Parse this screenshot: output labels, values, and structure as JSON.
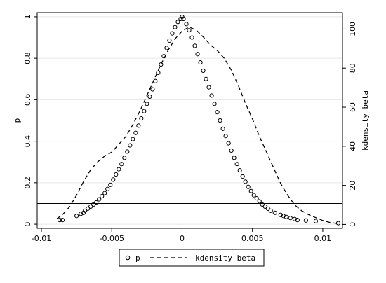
{
  "chart_data": {
    "type": "scatter",
    "title": "",
    "xlabel": "",
    "ylabel_left": "p",
    "ylabel_right": "kdensity beta",
    "xlim": [
      -0.0103,
      0.0114
    ],
    "ylim_left": [
      -0.02,
      1.02
    ],
    "ylim_right": [
      -2.0,
      108.4
    ],
    "x_ticks": [
      {
        "value": -0.01,
        "label": "-0.01"
      },
      {
        "value": -0.005,
        "label": "-0.005"
      },
      {
        "value": 0,
        "label": "0"
      },
      {
        "value": 0.005,
        "label": "0.005"
      },
      {
        "value": 0.01,
        "label": "0.01"
      }
    ],
    "y_left_ticks": [
      {
        "value": 0,
        "label": "0"
      },
      {
        "value": 0.2,
        "label": "0.2"
      },
      {
        "value": 0.4,
        "label": "0.4"
      },
      {
        "value": 0.6,
        "label": "0.6"
      },
      {
        "value": 0.8,
        "label": "0.8"
      },
      {
        "value": 1,
        "label": "1"
      }
    ],
    "y_right_ticks": [
      {
        "value": 0,
        "label": "0"
      },
      {
        "value": 20,
        "label": "20"
      },
      {
        "value": 40,
        "label": "40"
      },
      {
        "value": 60,
        "label": "60"
      },
      {
        "value": 80,
        "label": "80"
      },
      {
        "value": 100,
        "label": "100"
      }
    ],
    "grid": true,
    "reference_line": {
      "axis": "y_left",
      "value": 0.1
    },
    "legend": {
      "position": "bottom",
      "entries": [
        "p",
        "kdensity beta"
      ]
    },
    "series": [
      {
        "name": "p",
        "kind": "scatter",
        "marker": "hollow-circle",
        "color": "#000000",
        "axis": "left",
        "x": [
          -0.0087,
          -0.0085,
          -0.0075,
          -0.0072,
          -0.007,
          -0.0069,
          -0.0067,
          -0.0065,
          -0.0063,
          -0.0061,
          -0.0059,
          -0.0057,
          -0.0055,
          -0.0053,
          -0.0051,
          -0.0049,
          -0.0047,
          -0.0045,
          -0.0043,
          -0.0041,
          -0.0039,
          -0.0037,
          -0.0035,
          -0.0033,
          -0.0031,
          -0.0029,
          -0.0027,
          -0.0025,
          -0.0023,
          -0.0021,
          -0.0019,
          -0.0017,
          -0.0015,
          -0.0013,
          -0.0011,
          -0.0009,
          -0.0007,
          -0.0005,
          -0.0003,
          -0.0001,
          0.0,
          0.0001,
          0.0003,
          0.0005,
          0.0007,
          0.0009,
          0.0011,
          0.0013,
          0.0015,
          0.0017,
          0.0019,
          0.0021,
          0.0023,
          0.0025,
          0.0027,
          0.0029,
          0.0031,
          0.0033,
          0.0035,
          0.0037,
          0.0039,
          0.0041,
          0.0043,
          0.0045,
          0.0047,
          0.0049,
          0.0051,
          0.0053,
          0.0055,
          0.0057,
          0.0059,
          0.0061,
          0.0063,
          0.0066,
          0.007,
          0.0072,
          0.0074,
          0.0077,
          0.008,
          0.0082,
          0.0088,
          0.0095,
          0.0111
        ],
        "y": [
          0.02,
          0.02,
          0.04,
          0.05,
          0.055,
          0.065,
          0.075,
          0.085,
          0.095,
          0.105,
          0.12,
          0.135,
          0.15,
          0.17,
          0.19,
          0.215,
          0.24,
          0.265,
          0.29,
          0.32,
          0.35,
          0.38,
          0.41,
          0.44,
          0.475,
          0.51,
          0.545,
          0.58,
          0.615,
          0.65,
          0.69,
          0.73,
          0.77,
          0.81,
          0.85,
          0.885,
          0.92,
          0.95,
          0.975,
          0.99,
          1.0,
          0.99,
          0.965,
          0.935,
          0.9,
          0.86,
          0.82,
          0.78,
          0.74,
          0.7,
          0.66,
          0.62,
          0.58,
          0.54,
          0.5,
          0.46,
          0.425,
          0.39,
          0.355,
          0.32,
          0.29,
          0.26,
          0.23,
          0.205,
          0.18,
          0.16,
          0.14,
          0.125,
          0.11,
          0.095,
          0.085,
          0.075,
          0.065,
          0.055,
          0.045,
          0.04,
          0.035,
          0.03,
          0.025,
          0.02,
          0.018,
          0.015,
          0.005
        ]
      },
      {
        "name": "kdensity beta",
        "kind": "line",
        "style": "dashed",
        "color": "#000000",
        "axis": "right",
        "x": [
          -0.0089,
          -0.0085,
          -0.008,
          -0.0075,
          -0.007,
          -0.0065,
          -0.006,
          -0.0055,
          -0.005,
          -0.0045,
          -0.004,
          -0.0035,
          -0.003,
          -0.0025,
          -0.002,
          -0.0015,
          -0.001,
          -0.0005,
          0.0,
          0.0005,
          0.001,
          0.0015,
          0.002,
          0.0025,
          0.003,
          0.0035,
          0.004,
          0.0045,
          0.005,
          0.0055,
          0.006,
          0.0065,
          0.007,
          0.0075,
          0.008,
          0.0085,
          0.009,
          0.0095,
          0.01,
          0.0105,
          0.011
        ],
        "y": [
          3.0,
          5.0,
          9.0,
          15.0,
          22.0,
          28.0,
          32.0,
          35.0,
          37.0,
          41.0,
          45.0,
          51.0,
          58.0,
          66.0,
          74.0,
          82.0,
          89.0,
          95.0,
          99.0,
          101.0,
          99.5,
          96.0,
          92.0,
          89.0,
          85.0,
          79.0,
          71.0,
          62.0,
          54.0,
          45.0,
          37.0,
          29.0,
          21.0,
          15.0,
          10.0,
          7.0,
          5.0,
          3.5,
          2.0,
          1.0,
          0.5
        ]
      }
    ]
  }
}
